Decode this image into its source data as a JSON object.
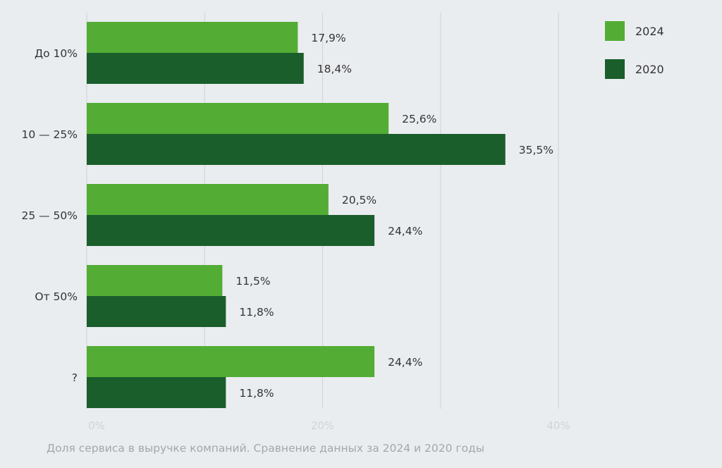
{
  "chart_data": {
    "type": "bar",
    "orientation": "horizontal",
    "categories": [
      "До 10%",
      "10 — 25%",
      "25 — 50%",
      "От 50%",
      "?"
    ],
    "series": [
      {
        "name": "2024",
        "color": "#53ad35",
        "values": [
          17.9,
          25.6,
          20.5,
          11.5,
          24.4
        ],
        "labels": [
          "17,9%",
          "25,6%",
          "20,5%",
          "11,5%",
          "24,4%"
        ]
      },
      {
        "name": "2020",
        "color": "#1a5e2c",
        "values": [
          18.4,
          35.5,
          24.4,
          11.8,
          11.8
        ],
        "labels": [
          "18,4%",
          "35,5%",
          "24,4%",
          "11,8%",
          "11,8%"
        ]
      }
    ],
    "xlim": [
      0,
      40
    ],
    "x_ticks": [
      "0%",
      "20%",
      "40%"
    ],
    "x_tick_values": [
      0,
      20,
      40
    ],
    "gridlines": [
      0,
      10,
      20,
      30,
      40
    ],
    "grid": true,
    "legend_position": "top-right",
    "caption": "Доля сервиса в выручке компаний. Сравнение данных за 2024 и 2020 годы"
  }
}
